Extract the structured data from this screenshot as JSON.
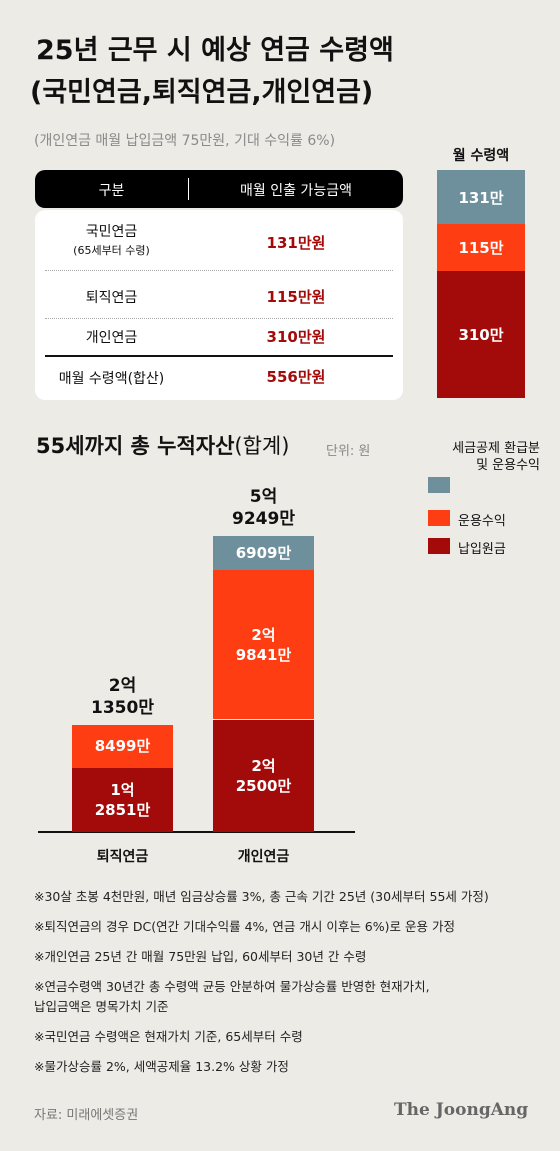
{
  "header": {
    "title_line1": "25년 근무 시 예상 연금 수령액",
    "title_line2": "(국민연금,퇴직연금,개인연금)",
    "subtitle": "(개인연금 매월 납입금액 75만원, 기대 수익률 6%)"
  },
  "table": {
    "columns": [
      "구분",
      "매월 인출 가능금액"
    ],
    "rows": [
      [
        "국민연금",
        "(65세부터 수령)",
        "131만원"
      ],
      [
        "퇴직연금",
        "115만원"
      ],
      [
        "개인연금",
        "310만원"
      ]
    ],
    "total": [
      "매월 수령액(합산)",
      "556만원"
    ]
  },
  "chart_data": [
    {
      "type": "stacked_column",
      "title": "월 수령액",
      "values": [
        131,
        115,
        310
      ],
      "value_labels": [
        "131만",
        "115만",
        "310만"
      ],
      "colors": [
        "#6e8f9c",
        "#ff3d12",
        "#a30b0b"
      ]
    },
    {
      "type": "stacked_bar",
      "title": "55세까지 총 누적자산",
      "title_suffix": "(합계)",
      "unit": "단위: 원",
      "categories": [
        "퇴직연금",
        "개인연금"
      ],
      "series": [
        {
          "name": "납입원금",
          "color": "#a30b0b",
          "values": [
            12851,
            22500
          ],
          "value_labels": [
            "1억\n2851만",
            "2억\n2500만"
          ]
        },
        {
          "name": "운용수익",
          "color": "#ff3d12",
          "values": [
            8499,
            29841
          ],
          "value_labels": [
            "8499만",
            "2억\n9841만"
          ]
        },
        {
          "name": "세금공제 환급분 및 운용수익",
          "color": "#6e8f9c",
          "values": [
            null,
            6909
          ],
          "value_labels": [
            null,
            "6909만"
          ]
        }
      ],
      "totals": [
        21350,
        59249
      ],
      "total_labels": [
        "2억\n1350만",
        "5억\n9249만"
      ]
    }
  ],
  "notes": [
    "※30살 초봉 4천만원, 매년 임금상승률 3%, 총 근속 기간 25년 (30세부터 55세 가정)",
    "※퇴직연금의 경우 DC(연간 기대수익률 4%, 연금 개시 이후는 6%)로 운용 가정",
    "※개인연금 25년 간 매월 75만원 납입, 60세부터 30년 간 수령",
    "※연금수령액 30년간 총 수령액 균등 안분하여 물가상승률 반영한 현재가치,\n  납입금액은 명목가치 기준",
    "※국민연금 수령액은 현재가치 기준, 65세부터 수령",
    "※물가상승률 2%, 세액공제율 13.2% 상황 가정"
  ],
  "source": "자료: 미래에셋증권",
  "logo": "The JoongAng"
}
